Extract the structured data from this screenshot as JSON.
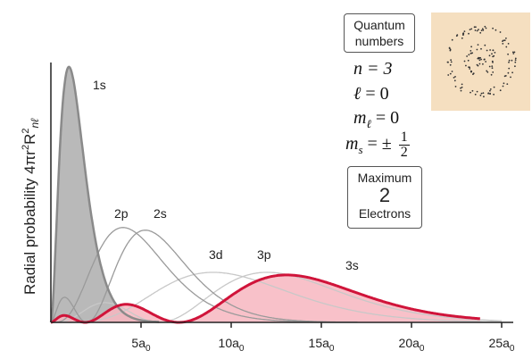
{
  "chart_data": {
    "type": "area",
    "ylabel": "Radial probability 4πr²R²nℓ",
    "ylabel_main": "Radial probability 4πr",
    "ylabel_sup": "2",
    "ylabel_r": "R",
    "ylabel_sup2": "2",
    "ylabel_sub": "nℓ",
    "x_unit": "a",
    "x_unit_sub": "0",
    "xlim": [
      0,
      25
    ],
    "ylim": [
      0,
      1.0
    ],
    "xticks": [
      {
        "value": 5,
        "num": "5",
        "unit": "a",
        "sub": "0"
      },
      {
        "value": 10,
        "num": "10",
        "unit": "a",
        "sub": "0"
      },
      {
        "value": 15,
        "num": "15",
        "unit": "a",
        "sub": "0"
      },
      {
        "value": 20,
        "num": "20",
        "unit": "a",
        "sub": "0"
      },
      {
        "value": 25,
        "num": "25",
        "unit": "a",
        "sub": "0"
      }
    ],
    "series": [
      {
        "name": "1s",
        "color": "#8a8a8a",
        "fill": "#b9b9b9",
        "highlight": false
      },
      {
        "name": "2p",
        "color": "#9a9a9a",
        "fill": "none",
        "highlight": false
      },
      {
        "name": "2s",
        "color": "#9a9a9a",
        "fill": "none",
        "highlight": false
      },
      {
        "name": "3d",
        "color": "#c8c8c8",
        "fill": "none",
        "highlight": false
      },
      {
        "name": "3p",
        "color": "#c8c8c8",
        "fill": "none",
        "highlight": false
      },
      {
        "name": "3s",
        "color": "#d0143a",
        "fill": "#f7b6c0",
        "highlight": true
      }
    ],
    "grid": false
  },
  "quantum_box": {
    "line1": "Quantum",
    "line2": "numbers"
  },
  "quantum_numbers": {
    "n_symbol": "n",
    "n_value": "= 3",
    "l_symbol": "ℓ",
    "l_value": "= 0",
    "ml_symbol": "m",
    "ml_sub": "ℓ",
    "ml_value": "= 0",
    "ms_symbol": "m",
    "ms_sub": "s",
    "ms_value": "= ±",
    "ms_num": "1",
    "ms_den": "2"
  },
  "max_box": {
    "line1": "Maximum",
    "count": "2",
    "line3": "Electrons"
  },
  "colors": {
    "axis": "#222222",
    "orbital_bg": "#f5dfc0",
    "orbital_dots": "#333333"
  }
}
